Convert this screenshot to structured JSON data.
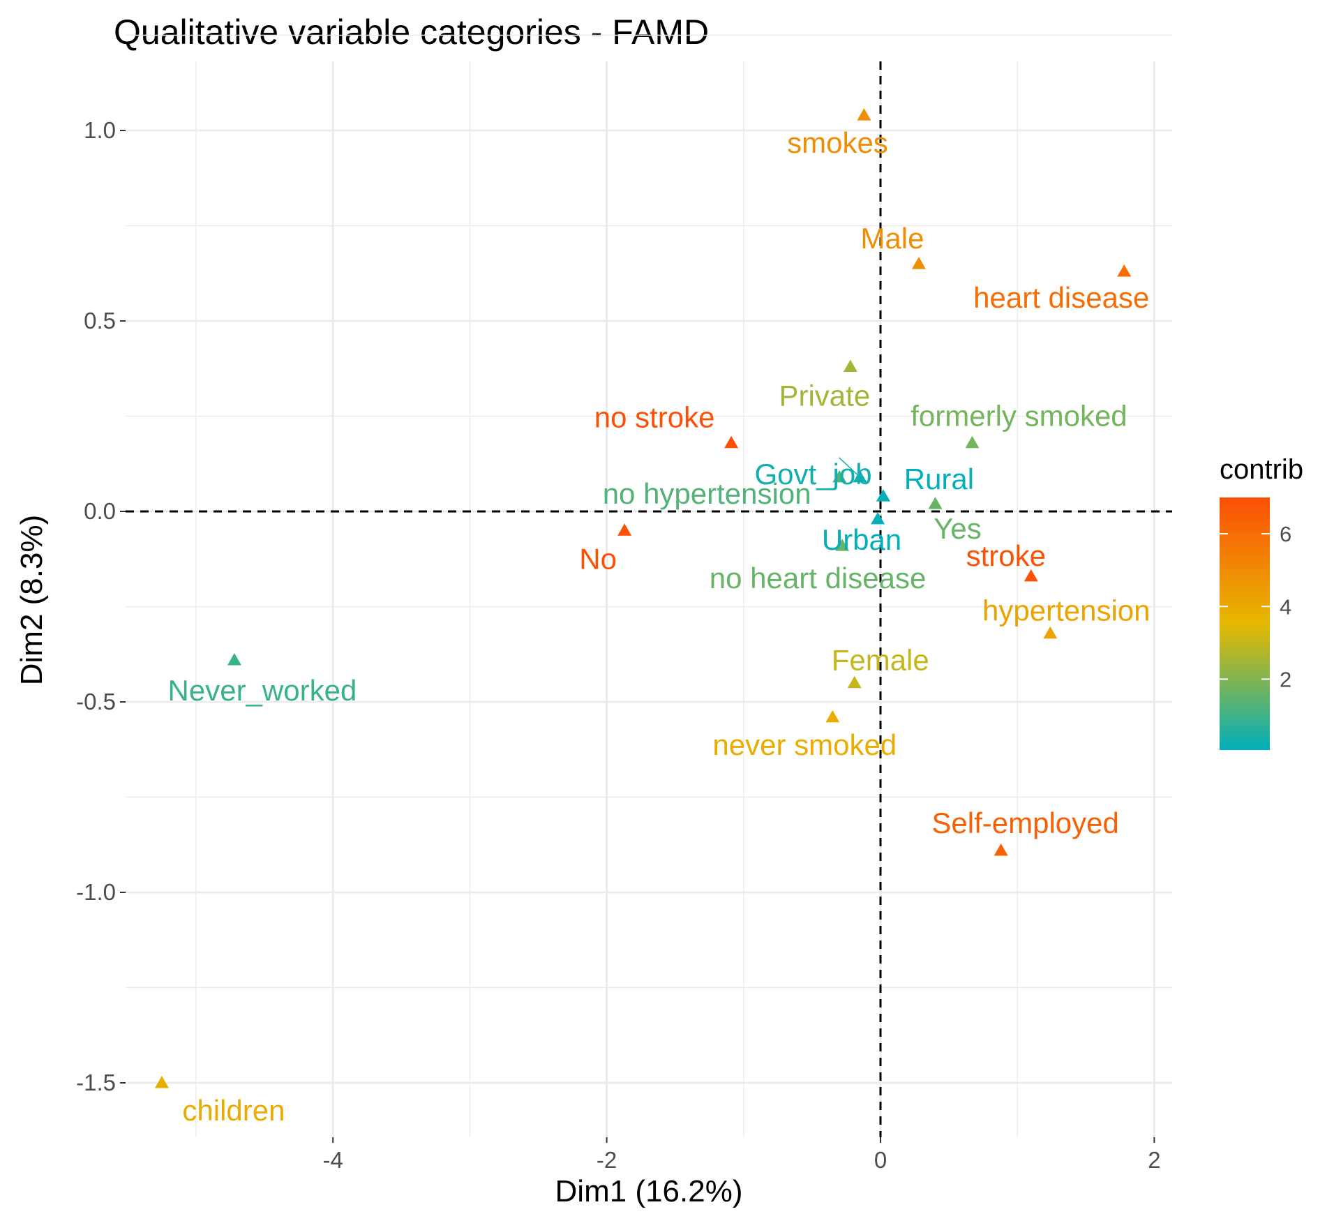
{
  "chart_data": {
    "type": "scatter",
    "title": "Qualitative variable categories - FAMD",
    "xlabel": "Dim1 (16.2%)",
    "ylabel": "Dim2 (8.3%)",
    "xlim": [
      -5.6,
      2.1
    ],
    "ylim": [
      -1.62,
      1.2
    ],
    "x_ticks": [
      -4,
      -2,
      0,
      2
    ],
    "x_tick_labels": [
      "-4",
      "-2",
      "0",
      "2"
    ],
    "y_ticks": [
      1.0,
      0.5,
      0.0,
      -0.5,
      -1.0,
      -1.5
    ],
    "y_tick_labels": [
      "1.0",
      "0.5",
      "0.0",
      "-0.5",
      "-1.0",
      "-1.5"
    ],
    "grid": true,
    "reference_lines": {
      "x": 0,
      "y": 0,
      "style": "dashed"
    },
    "color_scale": {
      "title": "contrib",
      "ticks": [
        2,
        4,
        6
      ],
      "tick_labels": [
        "2",
        "4",
        "6"
      ],
      "range": [
        0.05,
        7.0
      ],
      "colors": [
        "#00AFBB",
        "#E7B800",
        "#FC4E07"
      ]
    },
    "points": [
      {
        "label": "smokes",
        "x": -0.12,
        "y": 1.04,
        "contrib": 4.9
      },
      {
        "label": "Male",
        "x": 0.28,
        "y": 0.65,
        "contrib": 4.9
      },
      {
        "label": "heart disease",
        "x": 1.78,
        "y": 0.63,
        "contrib": 6.0
      },
      {
        "label": "Private",
        "x": -0.22,
        "y": 0.38,
        "contrib": 2.5
      },
      {
        "label": "formerly smoked",
        "x": 0.67,
        "y": 0.18,
        "contrib": 1.8
      },
      {
        "label": "no stroke",
        "x": -1.09,
        "y": 0.18,
        "contrib": 6.9
      },
      {
        "label": "Govt_job",
        "x": -0.15,
        "y": 0.09,
        "contrib": 0.3
      },
      {
        "label": "no hypertension",
        "x": -0.3,
        "y": 0.09,
        "contrib": 1.3
      },
      {
        "label": "Rural",
        "x": 0.02,
        "y": 0.04,
        "contrib": 0.1
      },
      {
        "label": "Yes",
        "x": 0.4,
        "y": 0.02,
        "contrib": 1.6
      },
      {
        "label": "Urban",
        "x": -0.02,
        "y": -0.02,
        "contrib": 0.1
      },
      {
        "label": "No",
        "x": -1.87,
        "y": -0.05,
        "contrib": 6.9
      },
      {
        "label": "no heart disease",
        "x": -0.28,
        "y": -0.09,
        "contrib": 1.6
      },
      {
        "label": "stroke",
        "x": 1.1,
        "y": -0.17,
        "contrib": 6.9
      },
      {
        "label": "hypertension",
        "x": 1.24,
        "y": -0.32,
        "contrib": 4.2
      },
      {
        "label": "Female",
        "x": -0.19,
        "y": -0.45,
        "contrib": 3.0
      },
      {
        "label": "Never_worked",
        "x": -4.72,
        "y": -0.39,
        "contrib": 0.9
      },
      {
        "label": "never smoked",
        "x": -0.35,
        "y": -0.54,
        "contrib": 3.9
      },
      {
        "label": "Self-employed",
        "x": 0.88,
        "y": -0.89,
        "contrib": 6.4
      },
      {
        "label": "children",
        "x": -5.25,
        "y": -1.5,
        "contrib": 3.9
      }
    ]
  }
}
